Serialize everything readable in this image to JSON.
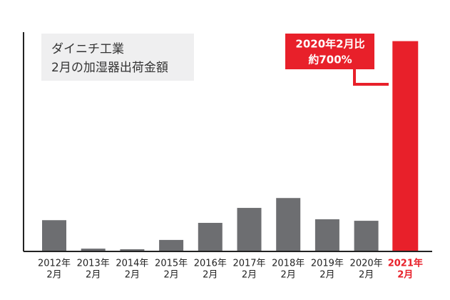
{
  "chart_data": {
    "type": "bar",
    "title": [
      "ダイニチ工業",
      "2月の加湿器出荷金額"
    ],
    "annotation": [
      "2020年2月比",
      "約700%"
    ],
    "categories": [
      [
        "2012年",
        "2月"
      ],
      [
        "2013年",
        "2月"
      ],
      [
        "2014年",
        "2月"
      ],
      [
        "2015年",
        "2月"
      ],
      [
        "2016年",
        "2月"
      ],
      [
        "2017年",
        "2月"
      ],
      [
        "2018年",
        "2月"
      ],
      [
        "2019年",
        "2月"
      ],
      [
        "2020年",
        "2月"
      ],
      [
        "2021年",
        "2月"
      ]
    ],
    "values": [
      102,
      7,
      5,
      36,
      93,
      143,
      176,
      105,
      100,
      700
    ],
    "colors": [
      "#6d6e71",
      "#6d6e71",
      "#6d6e71",
      "#6d6e71",
      "#6d6e71",
      "#6d6e71",
      "#6d6e71",
      "#6d6e71",
      "#6d6e71",
      "#e8202a"
    ],
    "ylim": [
      0,
      730
    ]
  }
}
